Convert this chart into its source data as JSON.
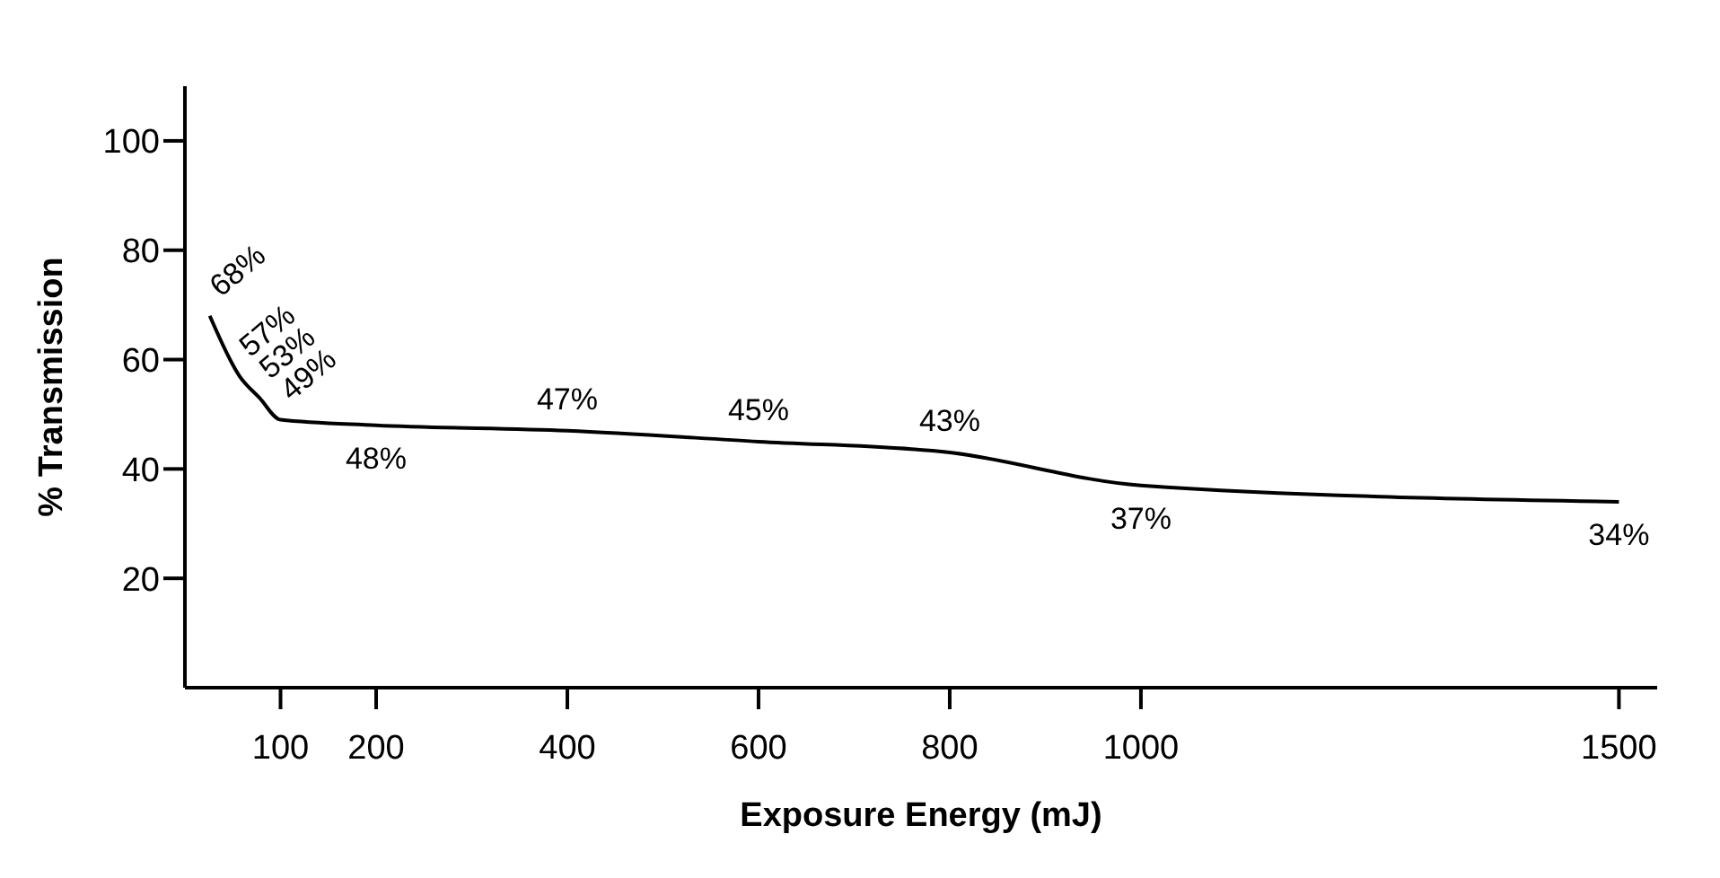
{
  "chart_data": {
    "type": "line",
    "xlabel": "Exposure  Energy  (mJ)",
    "ylabel": "%  Transmission",
    "x": [
      26,
      57,
      78,
      100,
      200,
      400,
      600,
      800,
      1000,
      1500
    ],
    "series": [
      {
        "color": "#000000",
        "values": [
          68,
          57,
          53,
          49,
          48,
          47,
          45,
          43,
          37,
          34
        ],
        "value_labels": [
          "68%",
          "57%",
          "53%",
          "49%",
          "48%",
          "47%",
          "45%",
          "43%",
          "37%",
          "34%"
        ]
      }
    ],
    "xlim": [
      0,
      1540
    ],
    "xticks": [
      100,
      200,
      400,
      600,
      800,
      1000,
      1500
    ],
    "ylim": [
      0,
      110
    ],
    "yticks": [
      20,
      40,
      60,
      80,
      100
    ],
    "grid": false,
    "legend": false,
    "marker": "none",
    "line_style": "solid"
  }
}
